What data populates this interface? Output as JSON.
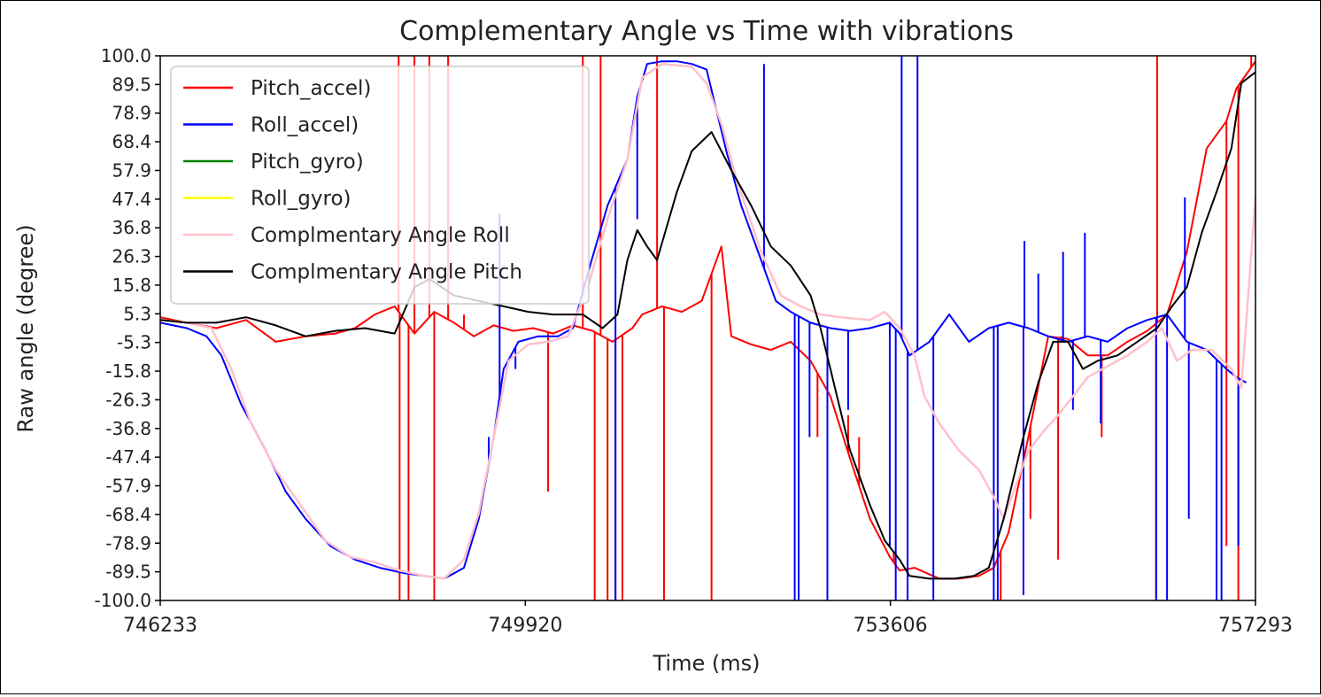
{
  "chart_data": {
    "type": "line",
    "title": "Complementary Angle vs Time with vibrations",
    "xlabel": "Time (ms)",
    "ylabel": "Raw angle (degree)",
    "xlim": [
      746233,
      757293
    ],
    "ylim": [
      -100,
      100
    ],
    "x_ticks": [
      "746233",
      "749920",
      "753606",
      "757293"
    ],
    "y_ticks": [
      "100.0",
      "89.5",
      "78.9",
      "68.4",
      "57.9",
      "47.4",
      "36.8",
      "26.3",
      "15.8",
      "5.3",
      "-5.3",
      "-15.8",
      "-26.3",
      "-36.8",
      "-47.4",
      "-57.9",
      "-68.4",
      "-78.9",
      "-89.5",
      "-100.0"
    ],
    "legend_position": "upper-left",
    "series": [
      {
        "name": "Pitch_accel)",
        "color": "#ff0000",
        "width": 2,
        "points": [
          [
            746233,
            4
          ],
          [
            746500,
            2
          ],
          [
            746800,
            0
          ],
          [
            747100,
            3
          ],
          [
            747400,
            -5
          ],
          [
            747700,
            -3
          ],
          [
            748000,
            -2
          ],
          [
            748200,
            0
          ],
          [
            748400,
            5
          ],
          [
            748600,
            8
          ],
          [
            748800,
            -2
          ],
          [
            749000,
            6
          ],
          [
            749200,
            2
          ],
          [
            749400,
            -3
          ],
          [
            749600,
            1
          ],
          [
            749800,
            -1
          ],
          [
            750000,
            0
          ],
          [
            750200,
            -2
          ],
          [
            750400,
            1
          ],
          [
            750600,
            -1
          ],
          [
            750800,
            -5
          ],
          [
            751000,
            0
          ],
          [
            751100,
            5
          ],
          [
            751300,
            8
          ],
          [
            751500,
            6
          ],
          [
            751700,
            10
          ],
          [
            751900,
            30
          ],
          [
            752000,
            -3
          ],
          [
            752200,
            -6
          ],
          [
            752400,
            -8
          ],
          [
            752600,
            -5
          ],
          [
            752800,
            -12
          ],
          [
            753000,
            -25
          ],
          [
            753200,
            -48
          ],
          [
            753400,
            -70
          ],
          [
            753600,
            -84
          ],
          [
            753700,
            -89
          ],
          [
            753850,
            -88
          ],
          [
            754100,
            -92
          ],
          [
            754300,
            -92
          ],
          [
            754500,
            -91
          ],
          [
            754650,
            -88
          ],
          [
            754800,
            -75
          ],
          [
            755000,
            -40
          ],
          [
            755200,
            -3
          ],
          [
            755400,
            -4
          ],
          [
            755600,
            -10
          ],
          [
            755800,
            -10
          ],
          [
            756000,
            -5
          ],
          [
            756200,
            -1
          ],
          [
            756400,
            5
          ],
          [
            756600,
            28
          ],
          [
            756800,
            66
          ],
          [
            757000,
            76
          ],
          [
            757100,
            88
          ],
          [
            757293,
            98
          ]
        ],
        "spikes": [
          [
            748640,
            100
          ],
          [
            748650,
            -100
          ],
          [
            748740,
            -100
          ],
          [
            748800,
            100
          ],
          [
            748950,
            100
          ],
          [
            749000,
            -100
          ],
          [
            749140,
            100
          ],
          [
            749300,
            5
          ],
          [
            750150,
            -60
          ],
          [
            750500,
            100
          ],
          [
            750620,
            -100
          ],
          [
            750680,
            100
          ],
          [
            750750,
            -100
          ],
          [
            750830,
            -100
          ],
          [
            750900,
            -100
          ],
          [
            751250,
            100
          ],
          [
            751320,
            -100
          ],
          [
            751800,
            -100
          ],
          [
            752870,
            -40
          ],
          [
            753180,
            -32
          ],
          [
            753290,
            -40
          ],
          [
            753640,
            -82
          ],
          [
            754720,
            -100
          ],
          [
            755020,
            -70
          ],
          [
            755300,
            -85
          ],
          [
            755330,
            -3
          ],
          [
            755740,
            -40
          ],
          [
            756290,
            -100
          ],
          [
            756300,
            100
          ],
          [
            757000,
            -80
          ],
          [
            757120,
            -100
          ],
          [
            757250,
            100
          ]
        ]
      },
      {
        "name": "Roll_accel)",
        "color": "#0000ff",
        "width": 2,
        "points": [
          [
            746233,
            2
          ],
          [
            746500,
            0
          ],
          [
            746700,
            -3
          ],
          [
            746850,
            -10
          ],
          [
            747050,
            -28
          ],
          [
            747300,
            -45
          ],
          [
            747500,
            -60
          ],
          [
            747700,
            -70
          ],
          [
            747950,
            -80
          ],
          [
            748200,
            -85
          ],
          [
            748450,
            -88
          ],
          [
            748700,
            -90
          ],
          [
            748900,
            -91
          ],
          [
            749100,
            -92
          ],
          [
            749300,
            -88
          ],
          [
            749450,
            -70
          ],
          [
            749600,
            -40
          ],
          [
            749700,
            -15
          ],
          [
            749850,
            -5
          ],
          [
            750050,
            -3
          ],
          [
            750250,
            -3
          ],
          [
            750400,
            0
          ],
          [
            750550,
            20
          ],
          [
            750750,
            45
          ],
          [
            750950,
            62
          ],
          [
            751050,
            85
          ],
          [
            751150,
            97
          ],
          [
            751300,
            98
          ],
          [
            751450,
            98
          ],
          [
            751600,
            97
          ],
          [
            751750,
            95
          ],
          [
            751850,
            80
          ],
          [
            751950,
            65
          ],
          [
            752100,
            45
          ],
          [
            752300,
            25
          ],
          [
            752450,
            10
          ],
          [
            752600,
            6
          ],
          [
            752800,
            2
          ],
          [
            753000,
            0
          ],
          [
            753200,
            -1
          ],
          [
            753400,
            0
          ],
          [
            753600,
            2
          ],
          [
            753700,
            -2
          ],
          [
            753800,
            -10
          ],
          [
            754000,
            -5
          ],
          [
            754200,
            5
          ],
          [
            754400,
            -5
          ],
          [
            754600,
            0
          ],
          [
            754800,
            2
          ],
          [
            755000,
            0
          ],
          [
            755200,
            -3
          ],
          [
            755400,
            -5
          ],
          [
            755600,
            -3
          ],
          [
            755800,
            -5
          ],
          [
            756000,
            0
          ],
          [
            756200,
            3
          ],
          [
            756400,
            5
          ],
          [
            756600,
            -5
          ],
          [
            756800,
            -8
          ],
          [
            757000,
            -15
          ],
          [
            757100,
            -18
          ],
          [
            757200,
            -20
          ]
        ],
        "spikes": [
          [
            749550,
            -40
          ],
          [
            749660,
            42
          ],
          [
            749820,
            -15
          ],
          [
            750830,
            -100
          ],
          [
            751050,
            40
          ],
          [
            752330,
            97
          ],
          [
            752640,
            -100
          ],
          [
            752680,
            -100
          ],
          [
            752970,
            -100
          ],
          [
            752790,
            -40
          ],
          [
            753180,
            -30
          ],
          [
            753600,
            -80
          ],
          [
            753660,
            -100
          ],
          [
            753720,
            100
          ],
          [
            753780,
            -100
          ],
          [
            753880,
            100
          ],
          [
            754040,
            -100
          ],
          [
            754650,
            -100
          ],
          [
            754690,
            -100
          ],
          [
            754950,
            -98
          ],
          [
            754960,
            32
          ],
          [
            755100,
            20
          ],
          [
            755350,
            28
          ],
          [
            755450,
            -30
          ],
          [
            755570,
            35
          ],
          [
            755730,
            -35
          ],
          [
            756290,
            -100
          ],
          [
            756400,
            -100
          ],
          [
            756580,
            48
          ],
          [
            756620,
            -70
          ],
          [
            756900,
            -100
          ],
          [
            756950,
            -100
          ],
          [
            757120,
            -80
          ]
        ]
      },
      {
        "name": "Pitch_gyro)",
        "color": "#008000",
        "width": 2,
        "points": [],
        "spikes": []
      },
      {
        "name": "Roll_gyro)",
        "color": "#ffff00",
        "width": 2,
        "points": [],
        "spikes": []
      },
      {
        "name": "Complmentary Angle Roll",
        "color": "#ffc0cb",
        "width": 2.5,
        "points": [
          [
            746233,
            3
          ],
          [
            746500,
            2
          ],
          [
            746750,
            0
          ],
          [
            746950,
            -15
          ],
          [
            747150,
            -35
          ],
          [
            747400,
            -52
          ],
          [
            747650,
            -65
          ],
          [
            747900,
            -78
          ],
          [
            748150,
            -84
          ],
          [
            748400,
            -86
          ],
          [
            748650,
            -89
          ],
          [
            748900,
            -91
          ],
          [
            749100,
            -92
          ],
          [
            749300,
            -85
          ],
          [
            749450,
            -68
          ],
          [
            749600,
            -40
          ],
          [
            749750,
            -12
          ],
          [
            749950,
            -6
          ],
          [
            750150,
            -5
          ],
          [
            750350,
            -3
          ],
          [
            750550,
            15
          ],
          [
            750750,
            40
          ],
          [
            750950,
            62
          ],
          [
            751100,
            92
          ],
          [
            751300,
            97
          ],
          [
            751600,
            96
          ],
          [
            751750,
            90
          ],
          [
            751900,
            75
          ],
          [
            752050,
            55
          ],
          [
            752300,
            28
          ],
          [
            752500,
            12
          ],
          [
            752700,
            8
          ],
          [
            752900,
            5
          ],
          [
            753100,
            4
          ],
          [
            753400,
            3
          ],
          [
            753550,
            6
          ],
          [
            753700,
            0
          ],
          [
            753850,
            -10
          ],
          [
            753950,
            -25
          ],
          [
            754100,
            -35
          ],
          [
            754300,
            -45
          ],
          [
            754500,
            -52
          ],
          [
            754650,
            -62
          ],
          [
            754750,
            -70
          ],
          [
            754850,
            -60
          ],
          [
            755000,
            -45
          ],
          [
            755150,
            -38
          ],
          [
            755300,
            -32
          ],
          [
            755450,
            -25
          ],
          [
            755600,
            -18
          ],
          [
            755800,
            -14
          ],
          [
            756000,
            -10
          ],
          [
            756200,
            -5
          ],
          [
            756350,
            0
          ],
          [
            756500,
            -12
          ],
          [
            756650,
            -8
          ],
          [
            756850,
            -8
          ],
          [
            757050,
            -15
          ],
          [
            757150,
            -22
          ],
          [
            757293,
            48
          ]
        ]
      },
      {
        "name": "Complmentary Angle Pitch",
        "color": "#000000",
        "width": 2,
        "points": [
          [
            746233,
            3
          ],
          [
            746500,
            2
          ],
          [
            746800,
            2
          ],
          [
            747100,
            4
          ],
          [
            747400,
            1
          ],
          [
            747700,
            -3
          ],
          [
            748000,
            -1
          ],
          [
            748300,
            0
          ],
          [
            748600,
            -2
          ],
          [
            748800,
            15
          ],
          [
            748950,
            18
          ],
          [
            749200,
            12
          ],
          [
            749450,
            10
          ],
          [
            749700,
            8
          ],
          [
            749950,
            6
          ],
          [
            750200,
            5
          ],
          [
            750500,
            5
          ],
          [
            750700,
            0
          ],
          [
            750850,
            5
          ],
          [
            750950,
            25
          ],
          [
            751050,
            36
          ],
          [
            751150,
            30
          ],
          [
            751250,
            25
          ],
          [
            751450,
            50
          ],
          [
            751600,
            65
          ],
          [
            751800,
            72
          ],
          [
            752000,
            58
          ],
          [
            752200,
            45
          ],
          [
            752400,
            30
          ],
          [
            752600,
            23
          ],
          [
            752800,
            12
          ],
          [
            752900,
            0
          ],
          [
            753000,
            -15
          ],
          [
            753200,
            -45
          ],
          [
            753400,
            -65
          ],
          [
            753550,
            -78
          ],
          [
            753700,
            -85
          ],
          [
            753800,
            -91
          ],
          [
            754000,
            -92
          ],
          [
            754250,
            -92
          ],
          [
            754450,
            -91
          ],
          [
            754600,
            -88
          ],
          [
            754750,
            -70
          ],
          [
            754950,
            -40
          ],
          [
            755100,
            -20
          ],
          [
            755250,
            -5
          ],
          [
            755400,
            -5
          ],
          [
            755550,
            -15
          ],
          [
            755700,
            -12
          ],
          [
            755900,
            -10
          ],
          [
            756100,
            -5
          ],
          [
            756300,
            0
          ],
          [
            756450,
            8
          ],
          [
            756600,
            15
          ],
          [
            756750,
            35
          ],
          [
            756900,
            50
          ],
          [
            757050,
            66
          ],
          [
            757150,
            90
          ],
          [
            757293,
            94
          ]
        ]
      }
    ]
  }
}
